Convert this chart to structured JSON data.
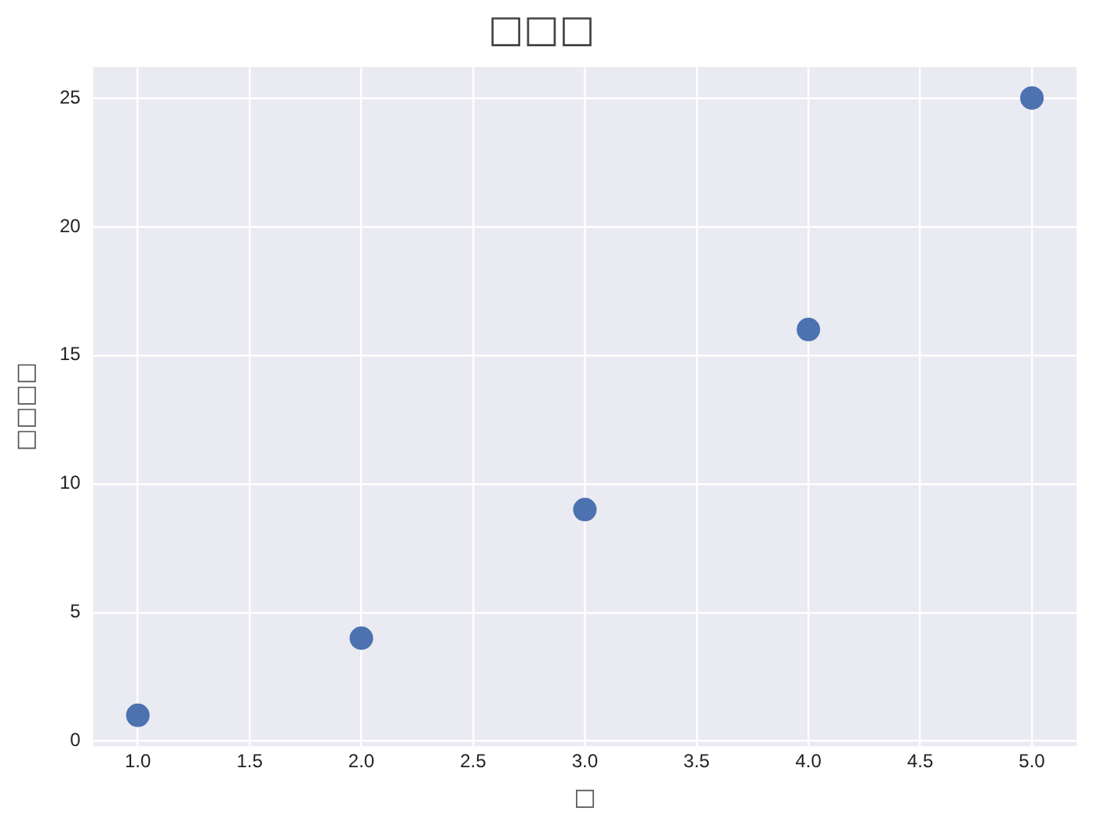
{
  "chart_data": {
    "type": "scatter",
    "title": "□□□",
    "xlabel": "□",
    "ylabel": "□□□□",
    "x": [
      1,
      2,
      3,
      4,
      5
    ],
    "series": [
      {
        "color": "#4c72b0",
        "values": [
          1,
          4,
          9,
          16,
          25
        ]
      }
    ],
    "xlim": [
      0.8,
      5.2
    ],
    "ylim": [
      -0.2,
      26.2
    ],
    "xticks": [
      {
        "value": 1,
        "label": "1.0"
      },
      {
        "value": 1.5,
        "label": "1.5"
      },
      {
        "value": 2,
        "label": "2.0"
      },
      {
        "value": 2.5,
        "label": "2.5"
      },
      {
        "value": 3,
        "label": "3.0"
      },
      {
        "value": 3.5,
        "label": "3.5"
      },
      {
        "value": 4,
        "label": "4.0"
      },
      {
        "value": 4.5,
        "label": "4.5"
      },
      {
        "value": 5,
        "label": "5.0"
      }
    ],
    "yticks": [
      0,
      5,
      10,
      15,
      20,
      25
    ],
    "grid": true,
    "legend": false,
    "marker": "circle"
  }
}
